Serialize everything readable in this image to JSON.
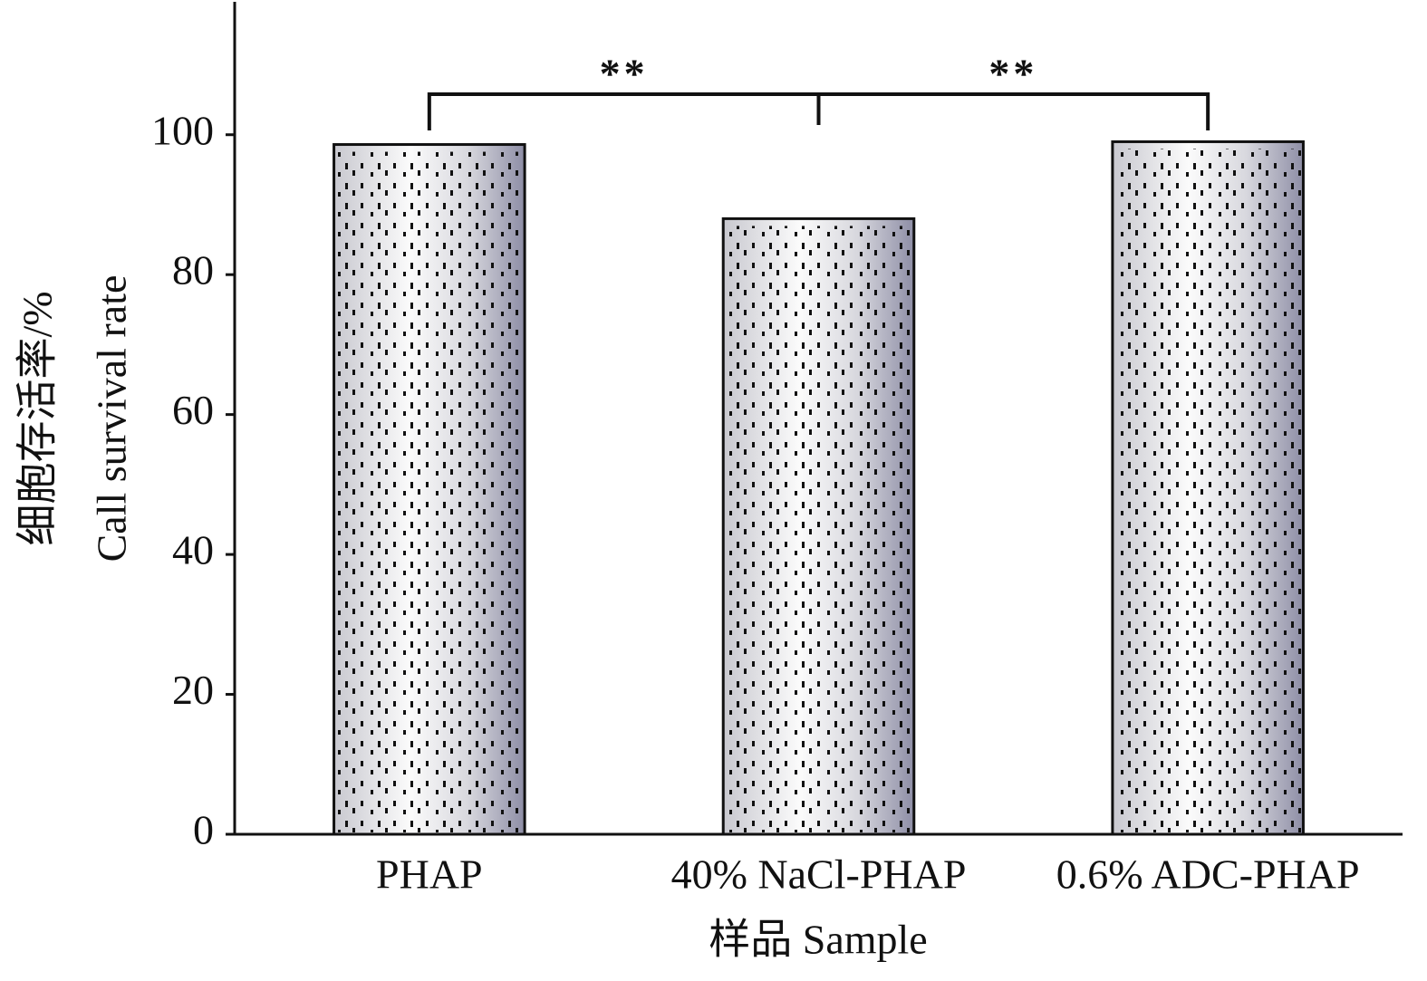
{
  "chart_data": {
    "type": "bar",
    "ylabel": [
      "细胞存活率/%",
      "Call survival rate"
    ],
    "xlabel": "样品 Sample",
    "categories": [
      "PHAP",
      "40% NaCl-PHAP",
      "0.6% ADC-PHAP"
    ],
    "values": [
      98.6,
      88,
      99
    ],
    "annotations": [
      "**",
      "**"
    ],
    "ylim": [
      0,
      119
    ],
    "yticks": [
      0,
      20,
      40,
      60,
      80,
      100
    ],
    "grid": false
  }
}
